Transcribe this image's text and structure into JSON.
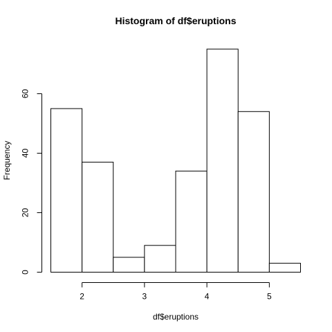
{
  "chart_data": {
    "type": "bar",
    "title": "Histogram of df$eruptions",
    "xlabel": "df$eruptions",
    "ylabel": "Frequency",
    "bins": [
      {
        "start": 1.5,
        "end": 2.0,
        "count": 55
      },
      {
        "start": 2.0,
        "end": 2.5,
        "count": 37
      },
      {
        "start": 2.5,
        "end": 3.0,
        "count": 5
      },
      {
        "start": 3.0,
        "end": 3.5,
        "count": 9
      },
      {
        "start": 3.5,
        "end": 4.0,
        "count": 34
      },
      {
        "start": 4.0,
        "end": 4.5,
        "count": 75
      },
      {
        "start": 4.5,
        "end": 5.0,
        "count": 54
      },
      {
        "start": 5.0,
        "end": 5.5,
        "count": 3
      }
    ],
    "xticks": [
      2,
      3,
      4,
      5
    ],
    "yticks": [
      0,
      20,
      40,
      60
    ],
    "xlim": [
      1.5,
      5.5
    ],
    "ylim": [
      0,
      75
    ],
    "grid": false,
    "legend": "none",
    "colors": {
      "bar_fill": "#ffffff",
      "bar_stroke": "#000000",
      "axis": "#000000",
      "text": "#000000"
    }
  }
}
